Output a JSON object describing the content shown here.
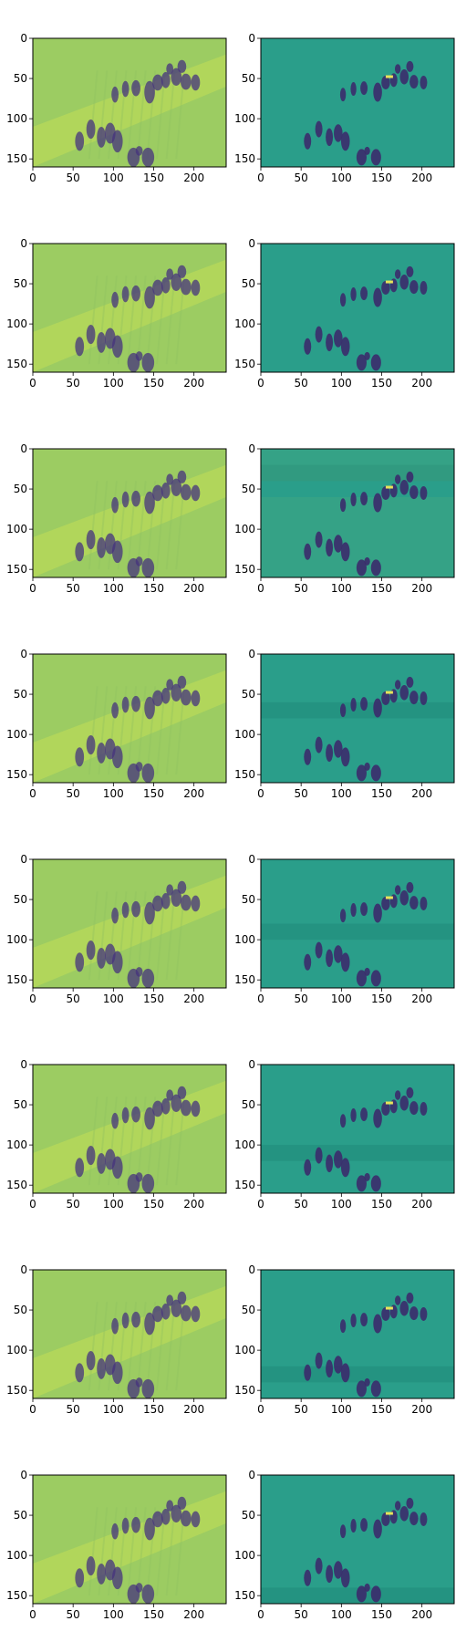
{
  "figure": {
    "rows": 8,
    "cols": 2,
    "left_image_kind": "prediction",
    "right_image_kind": "difference",
    "x_tick_labels": [
      "0",
      "50",
      "100",
      "150",
      "200"
    ],
    "y_tick_labels": [
      "0",
      "50",
      "100",
      "150"
    ],
    "x_ticks": [
      0,
      50,
      100,
      150,
      200
    ],
    "y_ticks": [
      0,
      50,
      100,
      150
    ],
    "xlim": [
      0,
      240
    ],
    "ylim": [
      160,
      0
    ],
    "left_bg": "#9ccc62",
    "left_bg_light": "#b6d85a",
    "right_bg": "#2a9e8a",
    "right_bg_dark": "#23917f",
    "figure_dark": "#3b2b6b",
    "figure_mid": "#46337e",
    "highlight": "#e8e35a",
    "left_streak_right_x_end": [
      180,
      240
    ],
    "right_band_rows": [
      null,
      null,
      [
        20,
        40
      ],
      [
        60,
        80
      ],
      [
        80,
        100
      ],
      [
        100,
        120
      ],
      [
        120,
        140
      ],
      [
        140,
        160
      ]
    ]
  }
}
